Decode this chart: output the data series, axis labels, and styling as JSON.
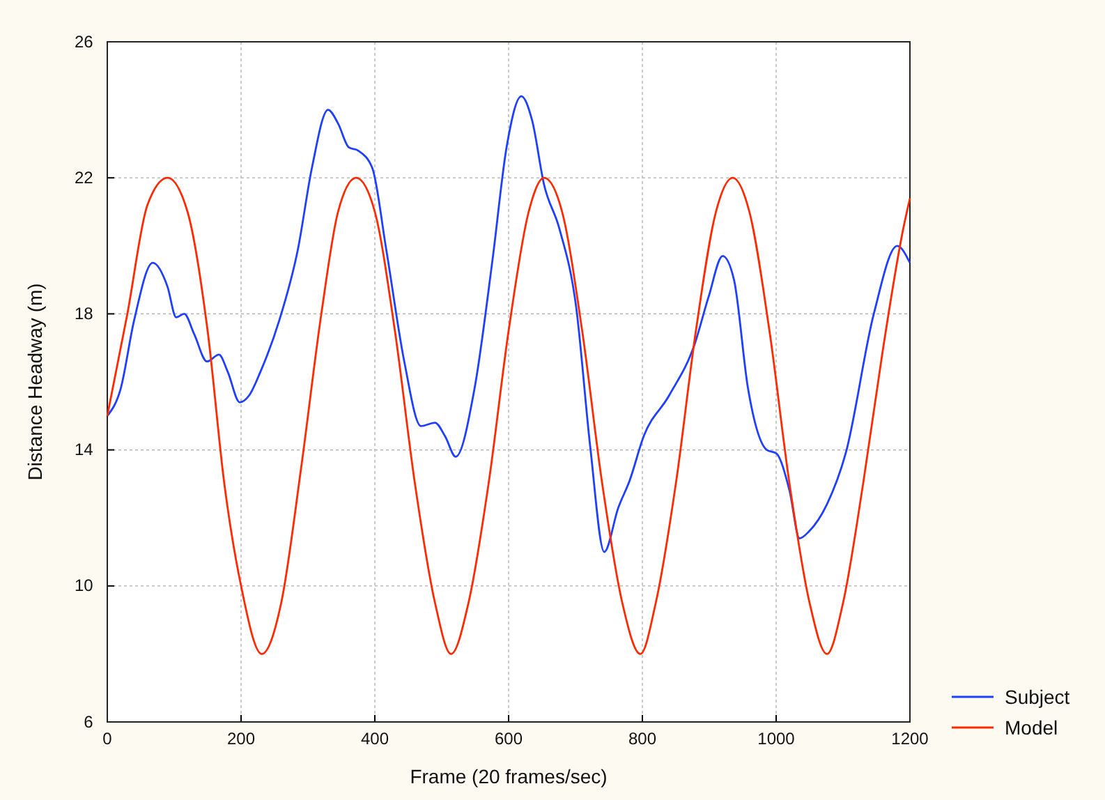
{
  "chart_data": {
    "type": "line",
    "xlabel": "Frame (20 frames/sec)",
    "ylabel": "Distance Headway (m)",
    "xlim": [
      0,
      1200
    ],
    "xticks": [
      0,
      200,
      400,
      600,
      800,
      1000,
      1200
    ],
    "ylim": [
      6,
      26
    ],
    "yticks": [
      6,
      10,
      14,
      18,
      22,
      26
    ],
    "grid": true,
    "legend": "right",
    "line_style": "solid",
    "marker": "none",
    "series": [
      {
        "name": "Subject",
        "color": "#1f3fff",
        "x": [
          0,
          20,
          40,
          68,
          90,
          103,
          115,
          130,
          149,
          167,
          180,
          198,
          212,
          229,
          257,
          285,
          306,
          330,
          345,
          361,
          375,
          396,
          417,
          444,
          469,
          490,
          505,
          521,
          549,
          576,
          597,
          619,
          635,
          653,
          676,
          701,
          722,
          743,
          764,
          781,
          802,
          840,
          878,
          899,
          920,
          937,
          958,
          986,
          1000,
          1020,
          1035,
          1049,
          1076,
          1104,
          1146,
          1181,
          1200
        ],
        "values": [
          15.0,
          15.8,
          17.8,
          19.5,
          18.8,
          17.9,
          18.0,
          17.4,
          16.6,
          16.8,
          16.3,
          15.4,
          15.6,
          16.3,
          17.8,
          19.9,
          22.3,
          24.0,
          23.6,
          22.9,
          22.8,
          22.3,
          19.9,
          16.6,
          14.7,
          14.8,
          14.4,
          13.8,
          15.8,
          19.6,
          22.9,
          24.4,
          23.7,
          21.8,
          20.5,
          18.2,
          14.1,
          11.0,
          12.3,
          13.1,
          14.4,
          15.6,
          17.1,
          18.5,
          19.7,
          19.0,
          15.8,
          14.0,
          13.9,
          12.8,
          11.4,
          11.6,
          12.4,
          13.9,
          18.0,
          20.0,
          19.5
        ]
      },
      {
        "name": "Model",
        "color": "#ff2a00",
        "x": [
          0,
          30,
          60,
          90,
          120,
          150,
          175,
          200,
          231,
          260,
          290,
          320,
          345,
          372,
          400,
          430,
          460,
          490,
          514,
          540,
          570,
          600,
          630,
          653,
          680,
          710,
          740,
          770,
          797,
          820,
          850,
          880,
          910,
          935,
          960,
          990,
          1020,
          1050,
          1076,
          1100,
          1130,
          1160,
          1190,
          1200
        ],
        "values": [
          15.0,
          18.0,
          21.2,
          22.0,
          21.0,
          17.5,
          13.0,
          10.0,
          8.0,
          9.5,
          13.5,
          18.0,
          21.0,
          22.0,
          21.0,
          17.5,
          13.0,
          9.5,
          8.0,
          9.5,
          13.0,
          17.5,
          21.0,
          22.0,
          21.0,
          17.5,
          13.0,
          9.5,
          8.0,
          9.5,
          13.0,
          17.5,
          21.0,
          22.0,
          21.0,
          17.5,
          13.0,
          9.5,
          8.0,
          9.5,
          13.0,
          17.0,
          20.5,
          21.4
        ]
      }
    ]
  }
}
